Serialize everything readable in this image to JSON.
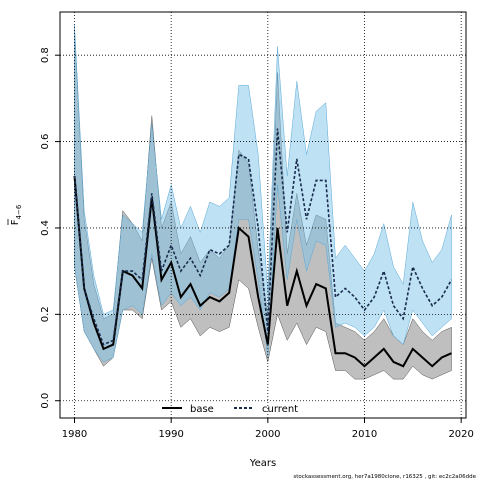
{
  "chart_data": {
    "type": "line",
    "xlabel": "Years",
    "ylabel_main": "F",
    "ylabel_sub": "4−6",
    "xlim": [
      1978.5,
      2020.5
    ],
    "ylim": [
      -0.04,
      0.9
    ],
    "x_ticks": [
      1980,
      1990,
      2000,
      2010,
      2020
    ],
    "x_tick_labels": [
      "1980",
      "1990",
      "2000",
      "2010",
      "2020"
    ],
    "y_ticks": [
      0.0,
      0.2,
      0.4,
      0.6,
      0.8
    ],
    "y_tick_labels": [
      "0.0",
      "0.2",
      "0.4",
      "0.6",
      "0.8"
    ],
    "grid": true,
    "legend_position": "bottom-center",
    "footer": "stockassessment.org, her7a1980clone, r16325 , git: ec2c2a06dde",
    "x": [
      1980,
      1981,
      1982,
      1983,
      1984,
      1985,
      1986,
      1987,
      1988,
      1989,
      1990,
      1991,
      1992,
      1993,
      1994,
      1995,
      1996,
      1997,
      1998,
      1999,
      2000,
      2001,
      2002,
      2003,
      2004,
      2005,
      2006,
      2007,
      2008,
      2009,
      2010,
      2011,
      2012,
      2013,
      2014,
      2015,
      2016,
      2017,
      2018,
      2019
    ],
    "series": [
      {
        "name": "base",
        "color": "#000000",
        "band_color": "#808080",
        "values": [
          0.52,
          0.26,
          0.18,
          0.12,
          0.13,
          0.3,
          0.29,
          0.26,
          0.47,
          0.28,
          0.32,
          0.24,
          0.27,
          0.22,
          0.24,
          0.23,
          0.25,
          0.4,
          0.38,
          0.24,
          0.13,
          0.4,
          0.22,
          0.3,
          0.22,
          0.27,
          0.26,
          0.11,
          0.11,
          0.1,
          0.08,
          0.1,
          0.12,
          0.09,
          0.08,
          0.12,
          0.1,
          0.08,
          0.1,
          0.11
        ],
        "lower": [
          0.31,
          0.16,
          0.12,
          0.08,
          0.1,
          0.21,
          0.21,
          0.19,
          0.33,
          0.21,
          0.23,
          0.17,
          0.19,
          0.15,
          0.17,
          0.16,
          0.17,
          0.28,
          0.26,
          0.17,
          0.09,
          0.2,
          0.14,
          0.18,
          0.13,
          0.17,
          0.16,
          0.07,
          0.07,
          0.05,
          0.05,
          0.06,
          0.07,
          0.05,
          0.05,
          0.08,
          0.06,
          0.05,
          0.06,
          0.07
        ],
        "upper": [
          0.86,
          0.42,
          0.27,
          0.19,
          0.2,
          0.44,
          0.41,
          0.37,
          0.66,
          0.4,
          0.46,
          0.34,
          0.38,
          0.32,
          0.35,
          0.33,
          0.36,
          0.58,
          0.55,
          0.35,
          0.2,
          0.76,
          0.34,
          0.48,
          0.36,
          0.43,
          0.42,
          0.18,
          0.17,
          0.16,
          0.14,
          0.16,
          0.19,
          0.15,
          0.13,
          0.19,
          0.16,
          0.14,
          0.16,
          0.17
        ]
      },
      {
        "name": "current",
        "color": "#1a2c4e",
        "band_color": "#7ec3ea",
        "values": [
          0.52,
          0.26,
          0.19,
          0.13,
          0.14,
          0.3,
          0.3,
          0.28,
          0.48,
          0.3,
          0.36,
          0.3,
          0.33,
          0.29,
          0.35,
          0.34,
          0.36,
          0.57,
          0.56,
          0.4,
          0.16,
          0.63,
          0.39,
          0.56,
          0.42,
          0.51,
          0.51,
          0.24,
          0.26,
          0.24,
          0.21,
          0.24,
          0.3,
          0.22,
          0.19,
          0.31,
          0.26,
          0.22,
          0.24,
          0.28
        ],
        "lower": [
          0.31,
          0.16,
          0.12,
          0.09,
          0.1,
          0.21,
          0.22,
          0.2,
          0.34,
          0.22,
          0.25,
          0.22,
          0.24,
          0.21,
          0.25,
          0.24,
          0.26,
          0.42,
          0.42,
          0.28,
          0.1,
          0.5,
          0.28,
          0.42,
          0.3,
          0.37,
          0.36,
          0.17,
          0.18,
          0.17,
          0.15,
          0.17,
          0.21,
          0.15,
          0.13,
          0.21,
          0.18,
          0.15,
          0.17,
          0.19
        ],
        "upper": [
          0.87,
          0.44,
          0.29,
          0.2,
          0.21,
          0.43,
          0.41,
          0.39,
          0.64,
          0.42,
          0.5,
          0.4,
          0.45,
          0.39,
          0.46,
          0.45,
          0.47,
          0.73,
          0.73,
          0.57,
          0.25,
          0.82,
          0.52,
          0.74,
          0.57,
          0.67,
          0.69,
          0.33,
          0.36,
          0.33,
          0.3,
          0.34,
          0.41,
          0.31,
          0.27,
          0.46,
          0.37,
          0.32,
          0.35,
          0.43
        ]
      }
    ]
  }
}
